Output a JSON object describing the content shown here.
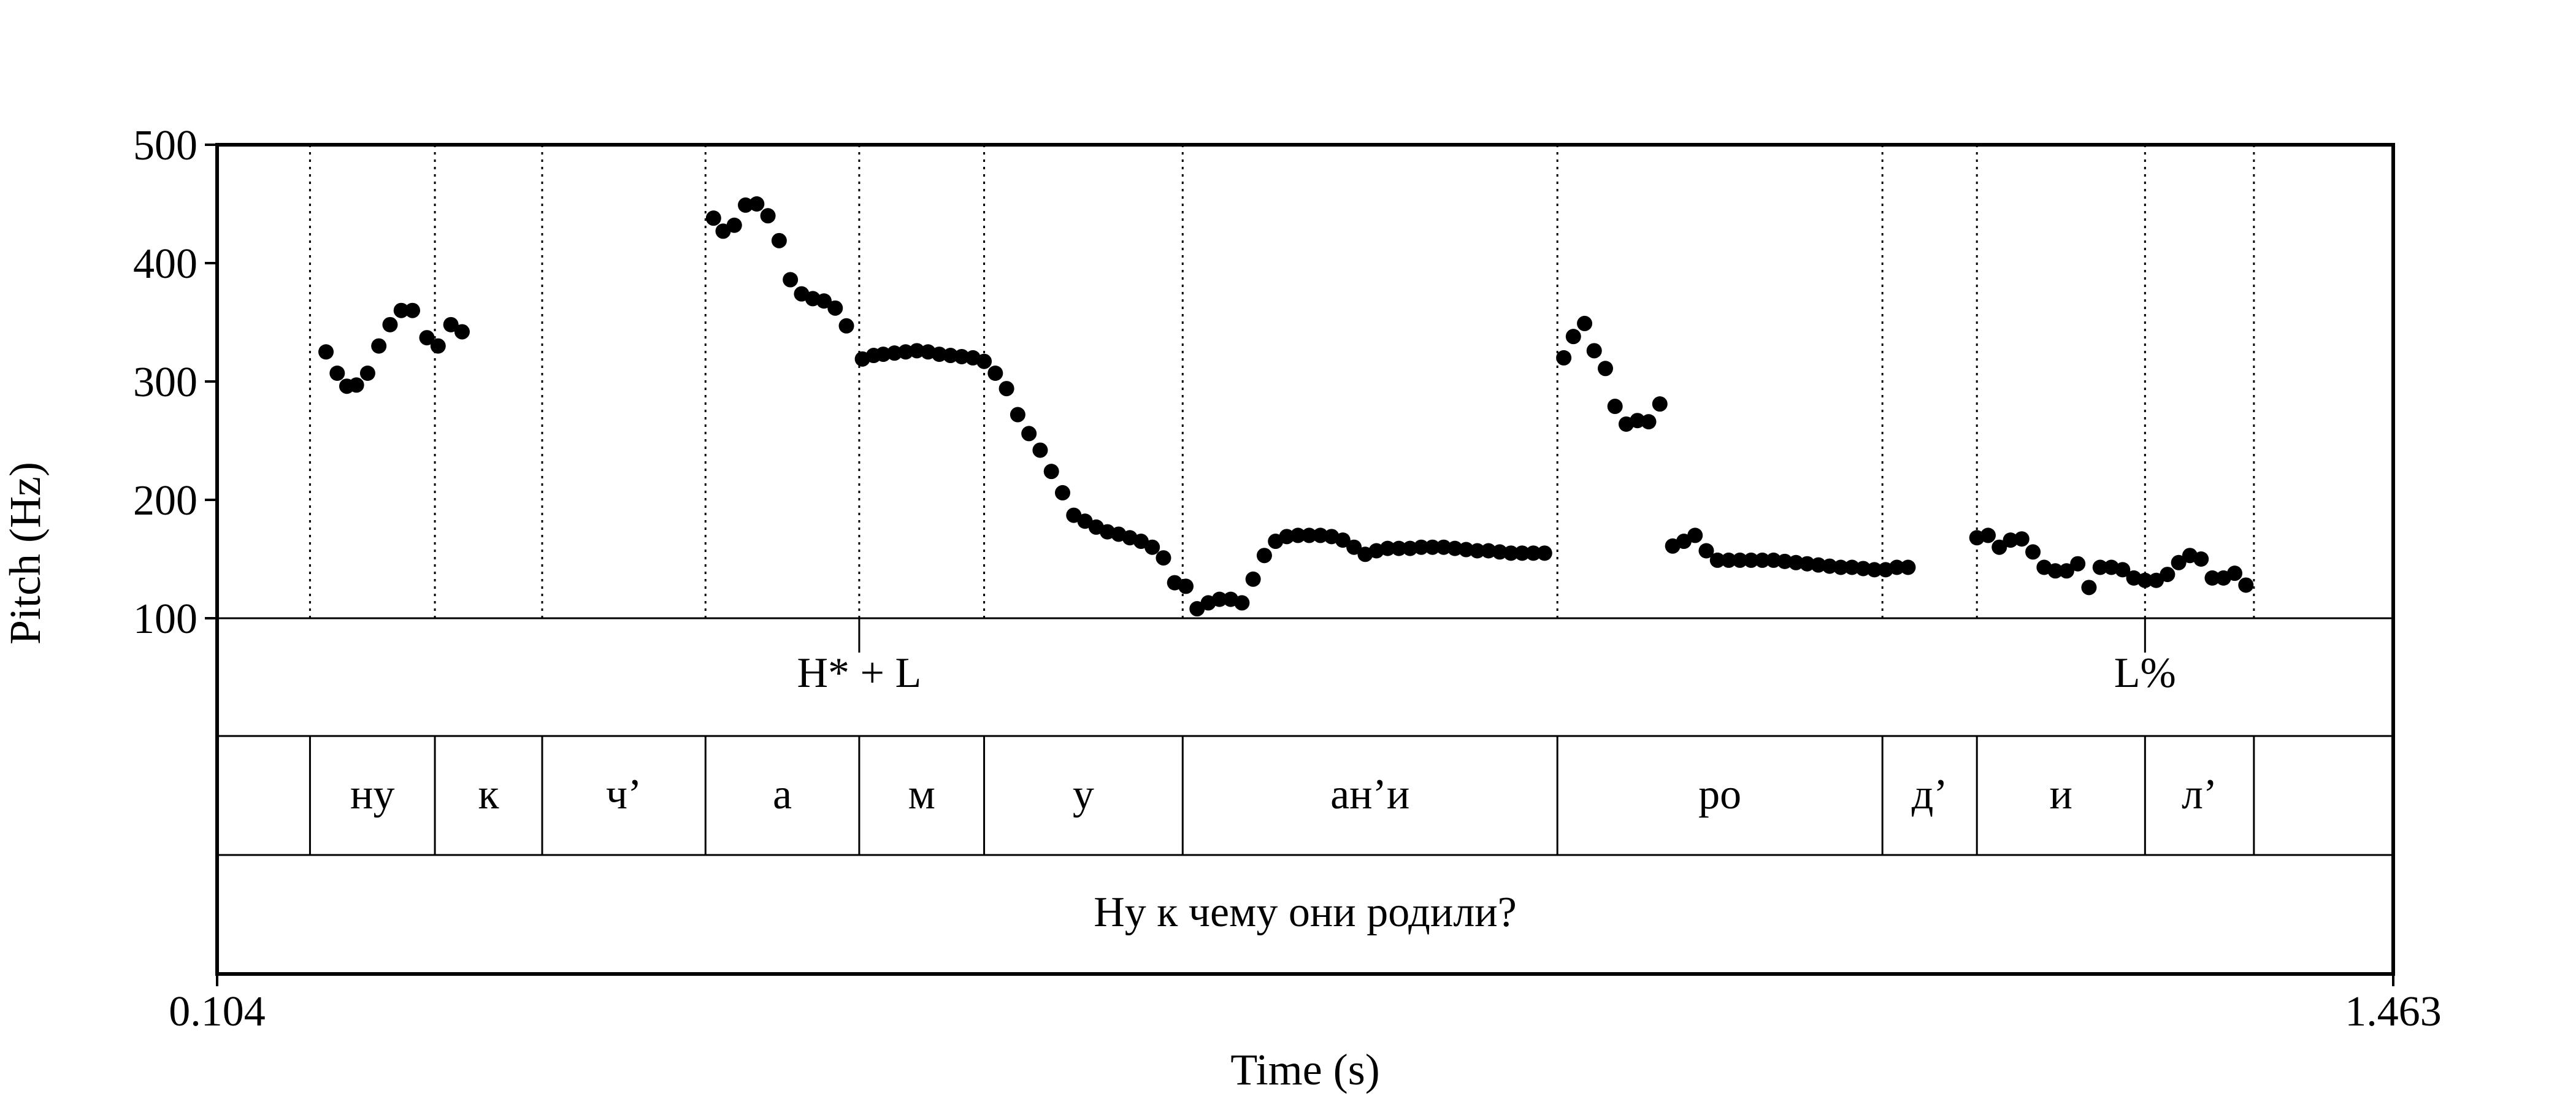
{
  "chart_data": {
    "type": "scatter",
    "title": "",
    "xlabel": "Time (s)",
    "ylabel": "Pitch (Hz)",
    "xlim": [
      0.104,
      1.463
    ],
    "ylim": [
      100,
      500
    ],
    "x_tick_labels": [
      "0.104",
      "1.463"
    ],
    "y_ticks": [
      100,
      200,
      300,
      400,
      500
    ],
    "y_tick_labels": [
      "100",
      "200",
      "300",
      "400",
      "500"
    ],
    "grid": false,
    "segment_boundaries": [
      0.162,
      0.24,
      0.307,
      0.409,
      0.505,
      0.583,
      0.707,
      0.941,
      1.144,
      1.203,
      1.308,
      1.376
    ],
    "tone_tier": [
      {
        "label": "H* + L",
        "time": 0.505
      },
      {
        "label": "L%",
        "time": 1.308
      }
    ],
    "segment_tier": [
      {
        "label": "",
        "start": 0.104,
        "end": 0.162
      },
      {
        "label": "ну",
        "start": 0.162,
        "end": 0.24
      },
      {
        "label": "к",
        "start": 0.24,
        "end": 0.307
      },
      {
        "label": "ч’",
        "start": 0.307,
        "end": 0.409
      },
      {
        "label": "а",
        "start": 0.409,
        "end": 0.505
      },
      {
        "label": "м",
        "start": 0.505,
        "end": 0.583
      },
      {
        "label": "у",
        "start": 0.583,
        "end": 0.707
      },
      {
        "label": "ан’и",
        "start": 0.707,
        "end": 0.941
      },
      {
        "label": "ро",
        "start": 0.941,
        "end": 1.144
      },
      {
        "label": "д’",
        "start": 1.144,
        "end": 1.203
      },
      {
        "label": "и",
        "start": 1.203,
        "end": 1.308
      },
      {
        "label": "л’",
        "start": 1.308,
        "end": 1.376
      },
      {
        "label": "",
        "start": 1.376,
        "end": 1.463
      }
    ],
    "sentence_tier": [
      {
        "label": "Ну к чему они родили?",
        "start": 0.104,
        "end": 1.463
      }
    ],
    "pitch_points": [
      [
        0.172,
        325
      ],
      [
        0.179,
        307
      ],
      [
        0.185,
        296
      ],
      [
        0.191,
        297
      ],
      [
        0.198,
        307
      ],
      [
        0.205,
        330
      ],
      [
        0.212,
        348
      ],
      [
        0.219,
        360
      ],
      [
        0.226,
        360
      ],
      [
        0.235,
        337
      ],
      [
        0.242,
        330
      ],
      [
        0.25,
        348
      ],
      [
        0.257,
        342
      ],
      [
        0.414,
        438
      ],
      [
        0.42,
        427
      ],
      [
        0.427,
        432
      ],
      [
        0.434,
        449
      ],
      [
        0.441,
        450
      ],
      [
        0.448,
        440
      ],
      [
        0.455,
        419
      ],
      [
        0.462,
        386
      ],
      [
        0.469,
        374
      ],
      [
        0.476,
        370
      ],
      [
        0.483,
        368
      ],
      [
        0.49,
        362
      ],
      [
        0.497,
        347
      ],
      [
        0.507,
        319
      ],
      [
        0.514,
        322
      ],
      [
        0.52,
        323
      ],
      [
        0.527,
        324
      ],
      [
        0.534,
        325
      ],
      [
        0.541,
        326
      ],
      [
        0.548,
        325
      ],
      [
        0.555,
        323
      ],
      [
        0.562,
        322
      ],
      [
        0.569,
        321
      ],
      [
        0.576,
        320
      ],
      [
        0.583,
        317
      ],
      [
        0.59,
        307
      ],
      [
        0.597,
        294
      ],
      [
        0.604,
        272
      ],
      [
        0.611,
        256
      ],
      [
        0.618,
        242
      ],
      [
        0.625,
        224
      ],
      [
        0.632,
        206
      ],
      [
        0.639,
        187
      ],
      [
        0.646,
        182
      ],
      [
        0.653,
        177
      ],
      [
        0.66,
        173
      ],
      [
        0.667,
        171
      ],
      [
        0.674,
        168
      ],
      [
        0.681,
        165
      ],
      [
        0.688,
        160
      ],
      [
        0.695,
        151
      ],
      [
        0.702,
        130
      ],
      [
        0.709,
        127
      ],
      [
        0.716,
        108
      ],
      [
        0.723,
        113
      ],
      [
        0.73,
        116
      ],
      [
        0.737,
        116
      ],
      [
        0.744,
        113
      ],
      [
        0.751,
        133
      ],
      [
        0.758,
        153
      ],
      [
        0.765,
        165
      ],
      [
        0.772,
        169
      ],
      [
        0.779,
        170
      ],
      [
        0.786,
        170
      ],
      [
        0.793,
        170
      ],
      [
        0.8,
        169
      ],
      [
        0.807,
        166
      ],
      [
        0.814,
        160
      ],
      [
        0.821,
        154
      ],
      [
        0.828,
        157
      ],
      [
        0.835,
        159
      ],
      [
        0.842,
        159
      ],
      [
        0.849,
        159
      ],
      [
        0.856,
        160
      ],
      [
        0.863,
        160
      ],
      [
        0.87,
        160
      ],
      [
        0.877,
        159
      ],
      [
        0.884,
        158
      ],
      [
        0.891,
        157
      ],
      [
        0.898,
        157
      ],
      [
        0.905,
        156
      ],
      [
        0.912,
        155
      ],
      [
        0.919,
        155
      ],
      [
        0.926,
        155
      ],
      [
        0.933,
        155
      ],
      [
        0.945,
        320
      ],
      [
        0.951,
        338
      ],
      [
        0.958,
        349
      ],
      [
        0.964,
        326
      ],
      [
        0.971,
        311
      ],
      [
        0.977,
        279
      ],
      [
        0.984,
        264
      ],
      [
        0.991,
        267
      ],
      [
        0.998,
        266
      ],
      [
        1.005,
        281
      ],
      [
        1.013,
        161
      ],
      [
        1.02,
        165
      ],
      [
        1.027,
        170
      ],
      [
        1.034,
        157
      ],
      [
        1.041,
        149
      ],
      [
        1.048,
        149
      ],
      [
        1.055,
        149
      ],
      [
        1.062,
        149
      ],
      [
        1.069,
        149
      ],
      [
        1.076,
        149
      ],
      [
        1.083,
        148
      ],
      [
        1.09,
        147
      ],
      [
        1.097,
        146
      ],
      [
        1.104,
        145
      ],
      [
        1.111,
        144
      ],
      [
        1.118,
        143
      ],
      [
        1.125,
        143
      ],
      [
        1.132,
        142
      ],
      [
        1.139,
        141
      ],
      [
        1.146,
        141
      ],
      [
        1.153,
        143
      ],
      [
        1.16,
        143
      ],
      [
        1.203,
        168
      ],
      [
        1.21,
        170
      ],
      [
        1.217,
        160
      ],
      [
        1.224,
        166
      ],
      [
        1.231,
        167
      ],
      [
        1.238,
        156
      ],
      [
        1.245,
        143
      ],
      [
        1.252,
        140
      ],
      [
        1.259,
        140
      ],
      [
        1.266,
        146
      ],
      [
        1.273,
        126
      ],
      [
        1.28,
        143
      ],
      [
        1.287,
        143
      ],
      [
        1.294,
        141
      ],
      [
        1.301,
        134
      ],
      [
        1.308,
        132
      ],
      [
        1.315,
        132
      ],
      [
        1.322,
        137
      ],
      [
        1.329,
        147
      ],
      [
        1.336,
        153
      ],
      [
        1.343,
        150
      ],
      [
        1.35,
        134
      ],
      [
        1.357,
        134
      ],
      [
        1.364,
        138
      ],
      [
        1.371,
        128
      ]
    ]
  }
}
